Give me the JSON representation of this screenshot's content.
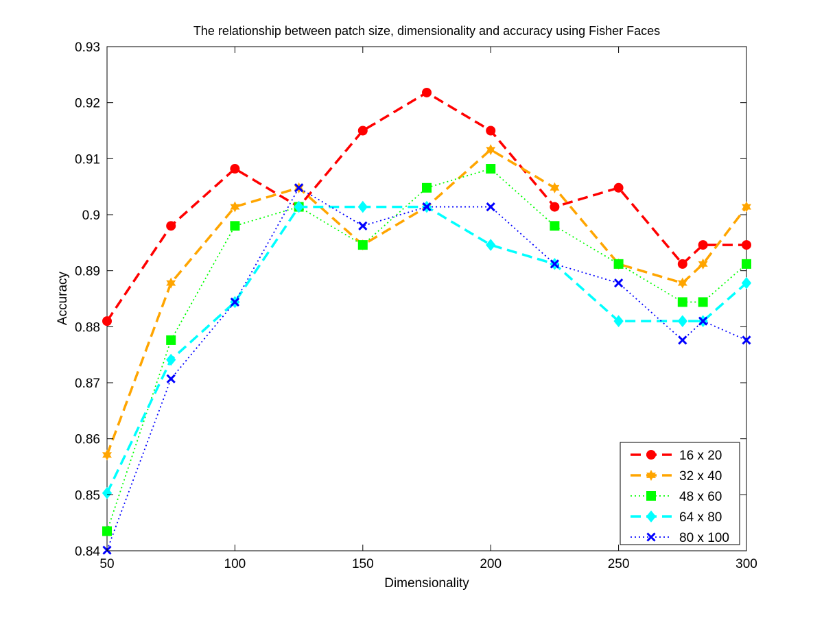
{
  "chart_data": {
    "type": "line",
    "title": "The relationship between patch size, dimensionality and accuracy using Fisher Faces",
    "xlabel": "Dimensionality",
    "ylabel": "Accuracy",
    "xlim": [
      50,
      300
    ],
    "ylim": [
      0.84,
      0.93
    ],
    "xticks": [
      {
        "value": 50,
        "label": "50"
      },
      {
        "value": 100,
        "label": "100"
      },
      {
        "value": 150,
        "label": "150"
      },
      {
        "value": 200,
        "label": "200"
      },
      {
        "value": 250,
        "label": "250"
      },
      {
        "value": 300,
        "label": "300"
      }
    ],
    "yticks": [
      {
        "value": 0.84,
        "label": "0.84"
      },
      {
        "value": 0.85,
        "label": "0.85"
      },
      {
        "value": 0.86,
        "label": "0.86"
      },
      {
        "value": 0.87,
        "label": "0.87"
      },
      {
        "value": 0.88,
        "label": "0.88"
      },
      {
        "value": 0.89,
        "label": "0.89"
      },
      {
        "value": 0.9,
        "label": "0.9"
      },
      {
        "value": 0.91,
        "label": "0.91"
      },
      {
        "value": 0.92,
        "label": "0.92"
      },
      {
        "value": 0.93,
        "label": "0.93"
      }
    ],
    "grid": false,
    "legend_position": "bottom-right",
    "series": [
      {
        "name": "16 x 20",
        "color": "#ff0000",
        "line_style": "dashed",
        "marker": "circle",
        "points": [
          [
            50,
            0.881
          ],
          [
            75,
            0.898
          ],
          [
            100,
            0.9082
          ],
          [
            125,
            0.9014
          ],
          [
            150,
            0.915
          ],
          [
            175,
            0.9218
          ],
          [
            200,
            0.915
          ],
          [
            225,
            0.9014
          ],
          [
            250,
            0.9048
          ],
          [
            275,
            0.8912
          ],
          [
            283,
            0.8946
          ],
          [
            300,
            0.8946
          ]
        ]
      },
      {
        "name": "32 x 40",
        "color": "#ffa500",
        "line_style": "dashed",
        "marker": "hexagram",
        "points": [
          [
            50,
            0.8571
          ],
          [
            75,
            0.8878
          ],
          [
            100,
            0.9014
          ],
          [
            125,
            0.9048
          ],
          [
            150,
            0.8946
          ],
          [
            175,
            0.9014
          ],
          [
            200,
            0.9116
          ],
          [
            225,
            0.9048
          ],
          [
            250,
            0.8912
          ],
          [
            275,
            0.8878
          ],
          [
            283,
            0.8912
          ],
          [
            300,
            0.9014
          ]
        ]
      },
      {
        "name": "48 x 60",
        "color": "#00ff00",
        "line_style": "dotted",
        "marker": "square",
        "points": [
          [
            50,
            0.8435
          ],
          [
            75,
            0.8776
          ],
          [
            100,
            0.898
          ],
          [
            125,
            0.9014
          ],
          [
            150,
            0.8946
          ],
          [
            175,
            0.9048
          ],
          [
            200,
            0.9082
          ],
          [
            225,
            0.898
          ],
          [
            250,
            0.8912
          ],
          [
            275,
            0.8844
          ],
          [
            283,
            0.8844
          ],
          [
            300,
            0.8912
          ]
        ]
      },
      {
        "name": "64 x 80",
        "color": "#00ffff",
        "line_style": "dashed",
        "marker": "diamond",
        "points": [
          [
            50,
            0.8503
          ],
          [
            75,
            0.8741
          ],
          [
            100,
            0.8844
          ],
          [
            125,
            0.9014
          ],
          [
            150,
            0.9014
          ],
          [
            175,
            0.9014
          ],
          [
            200,
            0.8946
          ],
          [
            225,
            0.8912
          ],
          [
            250,
            0.881
          ],
          [
            275,
            0.881
          ],
          [
            283,
            0.881
          ],
          [
            300,
            0.8878
          ]
        ]
      },
      {
        "name": "80 x 100",
        "color": "#0000ff",
        "line_style": "dotted",
        "marker": "x",
        "points": [
          [
            50,
            0.8401
          ],
          [
            75,
            0.8707
          ],
          [
            100,
            0.8844
          ],
          [
            125,
            0.9048
          ],
          [
            150,
            0.898
          ],
          [
            175,
            0.9014
          ],
          [
            200,
            0.9014
          ],
          [
            225,
            0.8912
          ],
          [
            250,
            0.8878
          ],
          [
            275,
            0.8776
          ],
          [
            283,
            0.881
          ],
          [
            300,
            0.8776
          ]
        ]
      }
    ]
  }
}
